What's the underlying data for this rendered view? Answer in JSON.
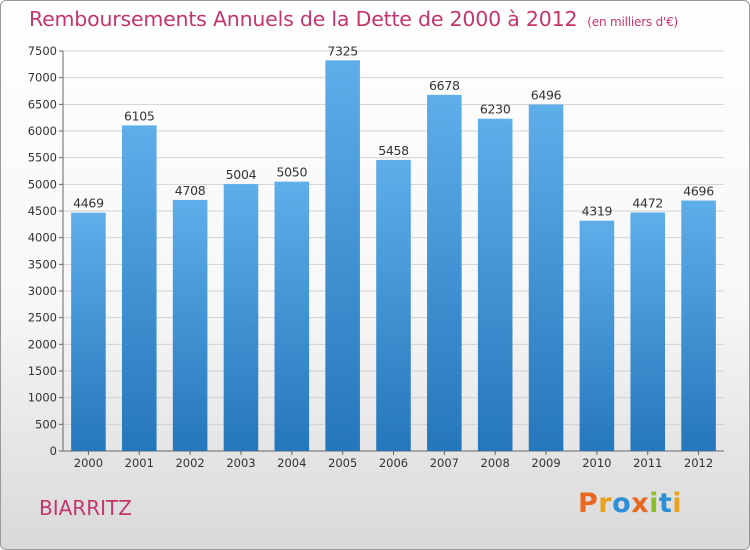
{
  "header": {
    "title": "Remboursements Annuels de la Dette de 2000 à 2012",
    "unit": "(en milliers d'€)"
  },
  "footer": {
    "city": "BIARRITZ",
    "logo": "Proxiti"
  },
  "colors": {
    "title": "#c4356e",
    "bar_top": "#5eaeea",
    "bar_bottom": "#2577bb",
    "logo_letters": [
      "#e9681f",
      "#e9a21f",
      "#2d8fd6",
      "#e9681f",
      "#8cbf2e",
      "#2d8fd6",
      "#e9a21f"
    ]
  },
  "chart_data": {
    "type": "bar",
    "categories": [
      "2000",
      "2001",
      "2002",
      "2003",
      "2004",
      "2005",
      "2006",
      "2007",
      "2008",
      "2009",
      "2010",
      "2011",
      "2012"
    ],
    "values": [
      4469,
      6105,
      4708,
      5004,
      5050,
      7325,
      5458,
      6678,
      6230,
      6496,
      4319,
      4472,
      4696
    ],
    "title": "Remboursements Annuels de la Dette de 2000 à 2012",
    "xlabel": "",
    "ylabel": "",
    "ylim": [
      0,
      7500
    ],
    "yticks": [
      "0",
      "500",
      "1000",
      "1500",
      "2000",
      "2500",
      "3000",
      "3500",
      "4000",
      "4500",
      "5000",
      "5500",
      "6000",
      "6500",
      "7000",
      "7500"
    ],
    "grid": true,
    "data_labels": true
  }
}
